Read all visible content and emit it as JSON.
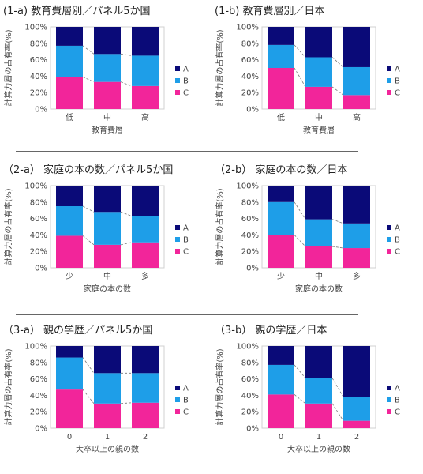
{
  "colors": {
    "A": "#0a0a78",
    "B": "#1e9ee8",
    "C": "#f2259a"
  },
  "legend": [
    "A",
    "B",
    "C"
  ],
  "y_ticks": [
    "0%",
    "20%",
    "40%",
    "60%",
    "80%",
    "100%"
  ],
  "chart_data": [
    {
      "type": "bar",
      "stacked": true,
      "ylim": [
        0,
        100
      ],
      "title": "(1-a) 教育費層別／パネル5か国",
      "categories": [
        "低",
        "中",
        "高"
      ],
      "xlabel": "教育費層",
      "ylabel": "計算力層の占有率(%)",
      "series": [
        {
          "name": "C",
          "values": [
            39,
            33,
            28
          ]
        },
        {
          "name": "B",
          "values": [
            38,
            34,
            37
          ]
        },
        {
          "name": "A",
          "values": [
            23,
            33,
            35
          ]
        }
      ]
    },
    {
      "type": "bar",
      "stacked": true,
      "ylim": [
        0,
        100
      ],
      "title": "(1-b) 教育費層別／日本",
      "categories": [
        "低",
        "中",
        "高"
      ],
      "xlabel": "教育費層",
      "ylabel": "計算力層の占有率(%)",
      "series": [
        {
          "name": "C",
          "values": [
            50,
            27,
            17
          ]
        },
        {
          "name": "B",
          "values": [
            28,
            36,
            34
          ]
        },
        {
          "name": "A",
          "values": [
            22,
            37,
            49
          ]
        }
      ]
    },
    {
      "type": "bar",
      "stacked": true,
      "ylim": [
        0,
        100
      ],
      "title": "（2-a） 家庭の本の数／パネル5か国",
      "categories": [
        "少",
        "中",
        "多"
      ],
      "xlabel": "家庭の本の数",
      "ylabel": "計算力層の占有率(%)",
      "series": [
        {
          "name": "C",
          "values": [
            39,
            28,
            31
          ]
        },
        {
          "name": "B",
          "values": [
            36,
            40,
            32
          ]
        },
        {
          "name": "A",
          "values": [
            25,
            32,
            37
          ]
        }
      ]
    },
    {
      "type": "bar",
      "stacked": true,
      "ylim": [
        0,
        100
      ],
      "title": "（2-b） 家庭の本の数／日本",
      "categories": [
        "少",
        "中",
        "多"
      ],
      "xlabel": "家庭の本の数",
      "ylabel": "計算力層の占有率(%)",
      "series": [
        {
          "name": "C",
          "values": [
            40,
            26,
            24
          ]
        },
        {
          "name": "B",
          "values": [
            40,
            33,
            30
          ]
        },
        {
          "name": "A",
          "values": [
            20,
            41,
            46
          ]
        }
      ]
    },
    {
      "type": "bar",
      "stacked": true,
      "ylim": [
        0,
        100
      ],
      "title": "（3-a） 親の学歴／パネル5か国",
      "categories": [
        "0",
        "1",
        "2"
      ],
      "xlabel": "大卒以上の親の数",
      "ylabel": "計算力層の占有率(%)",
      "series": [
        {
          "name": "C",
          "values": [
            47,
            30,
            31
          ]
        },
        {
          "name": "B",
          "values": [
            39,
            37,
            36
          ]
        },
        {
          "name": "A",
          "values": [
            14,
            33,
            33
          ]
        }
      ]
    },
    {
      "type": "bar",
      "stacked": true,
      "ylim": [
        0,
        100
      ],
      "title": "（3-b） 親の学歴／日本",
      "categories": [
        "0",
        "1",
        "2"
      ],
      "xlabel": "大卒以上の親の数",
      "ylabel": "計算力層の占有率(%)",
      "series": [
        {
          "name": "C",
          "values": [
            41,
            30,
            9
          ]
        },
        {
          "name": "B",
          "values": [
            36,
            31,
            29
          ]
        },
        {
          "name": "A",
          "values": [
            23,
            39,
            62
          ]
        }
      ]
    }
  ]
}
